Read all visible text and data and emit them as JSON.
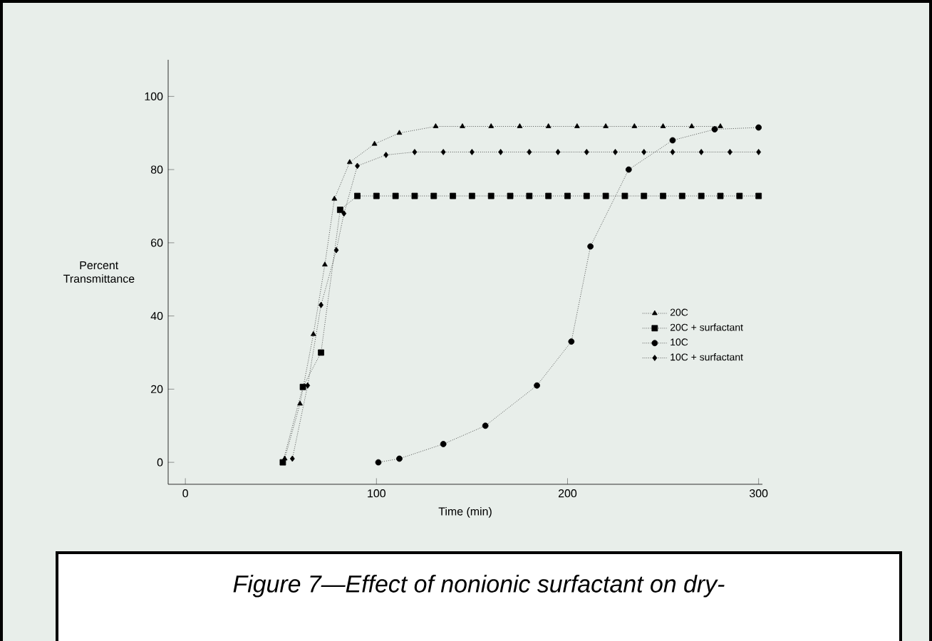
{
  "chart_data": {
    "type": "line",
    "xlabel": "Time (min)",
    "ylabel": "Percent Transmittance",
    "xlim": [
      -9,
      302
    ],
    "ylim": [
      -6,
      110
    ],
    "xticks": [
      0,
      100,
      200,
      300
    ],
    "yticks": [
      0,
      20,
      40,
      60,
      80,
      100
    ],
    "grid": false,
    "legend": "right",
    "line_style": "dotted",
    "series": [
      {
        "name": "20C",
        "color": "#000000",
        "marker": "triangle",
        "x": [
          52,
          60,
          67,
          73,
          78,
          86,
          99,
          112,
          131,
          145,
          160,
          175,
          190,
          205,
          220,
          235,
          250,
          265,
          280
        ],
        "values": [
          1,
          16,
          35,
          54,
          72,
          82,
          87,
          90,
          91.8,
          91.8,
          91.8,
          91.8,
          91.8,
          91.8,
          91.8,
          91.8,
          91.8,
          91.8,
          91.8
        ]
      },
      {
        "name": "20C + surfactant",
        "color": "#000000",
        "marker": "square",
        "x": [
          51,
          61.5,
          71,
          81,
          90,
          100,
          110,
          120,
          130,
          140,
          150,
          160,
          170,
          180,
          190,
          200,
          210,
          220,
          230,
          240,
          250,
          260,
          270,
          280,
          290,
          300
        ],
        "values": [
          0,
          20.6,
          30,
          69,
          72.8,
          72.8,
          72.8,
          72.8,
          72.8,
          72.8,
          72.8,
          72.8,
          72.8,
          72.8,
          72.8,
          72.8,
          72.8,
          72.8,
          72.8,
          72.8,
          72.8,
          72.8,
          72.8,
          72.8,
          72.8,
          72.8
        ]
      },
      {
        "name": "10C",
        "color": "#000000",
        "marker": "circle",
        "x": [
          101,
          112,
          135,
          157,
          184,
          202,
          212,
          232,
          255,
          277,
          300
        ],
        "values": [
          0,
          1,
          5,
          10,
          21,
          33,
          59,
          80,
          88,
          91,
          91.5
        ]
      },
      {
        "name": "10C + surfactant",
        "color": "#000000",
        "marker": "diamond",
        "x": [
          56,
          64,
          71,
          79,
          83,
          90,
          105,
          120,
          135,
          150,
          165,
          180,
          195,
          210,
          225,
          240,
          255,
          270,
          285,
          300
        ],
        "values": [
          1,
          21,
          43,
          58,
          68,
          81,
          84,
          84.8,
          84.8,
          84.8,
          84.8,
          84.8,
          84.8,
          84.8,
          84.8,
          84.8,
          84.8,
          84.8,
          84.8,
          84.8
        ]
      }
    ],
    "annotations": [
      "Figure 7—Effect of nonionic surfactant on dry-"
    ]
  }
}
